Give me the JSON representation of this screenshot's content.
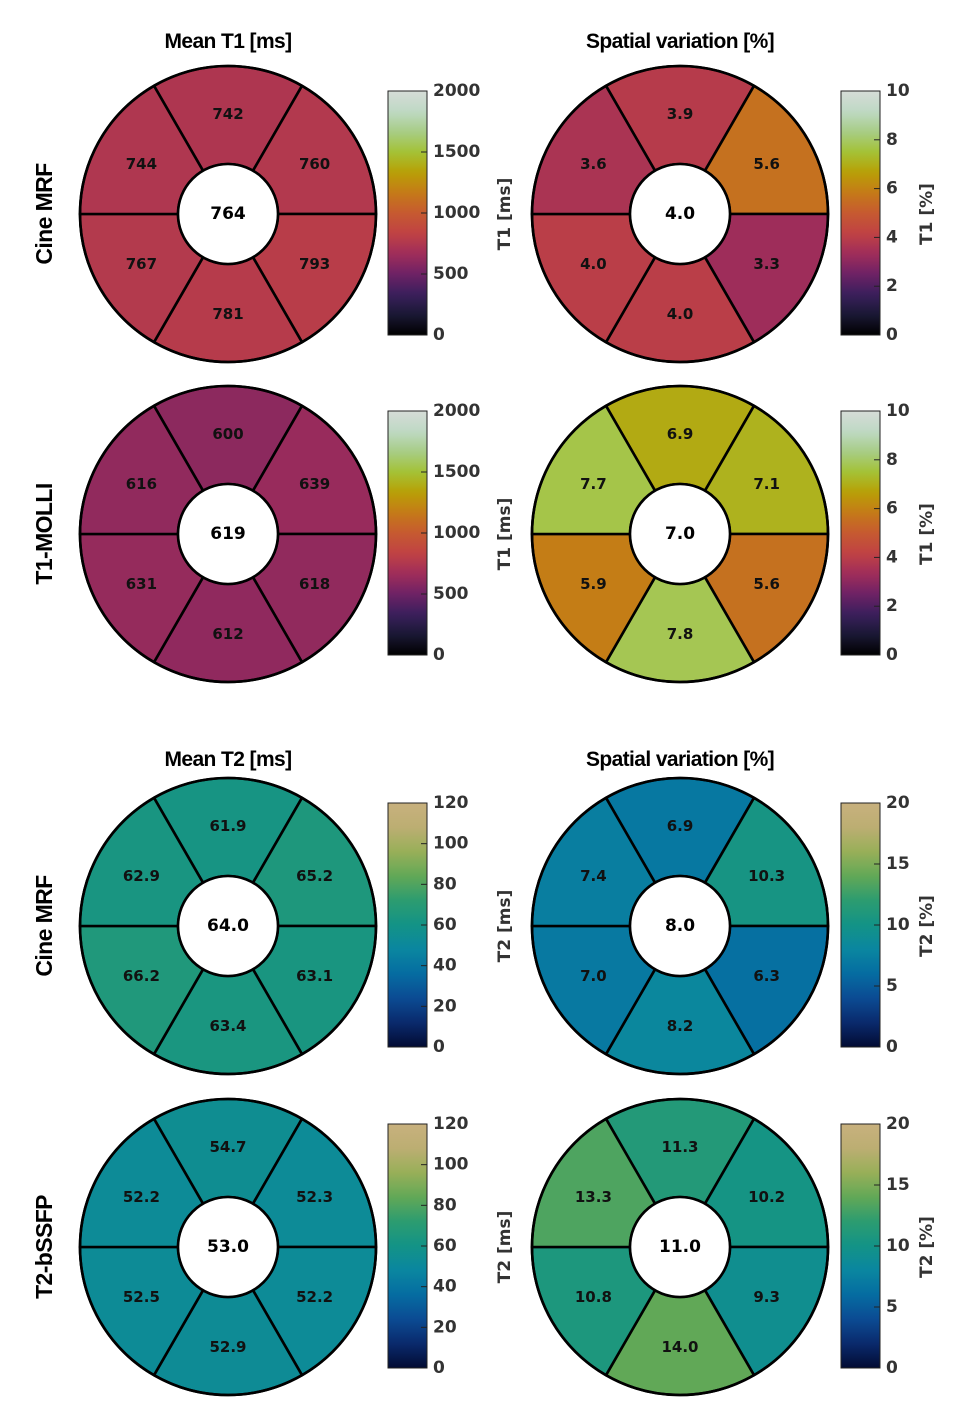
{
  "chart_data": [
    {
      "type": "bullseye",
      "section": "T1",
      "row_label": "Cine MRF",
      "col_title": "Mean T1 [ms]",
      "segments": [
        742,
        760,
        793,
        781,
        767,
        744
      ],
      "center": "764",
      "value_labels": [
        "742",
        "760",
        "793",
        "781",
        "767",
        "744"
      ],
      "colormap": "lipari",
      "clim": [
        0,
        2000
      ],
      "colorbar_label": "T1 [ms]",
      "colorbar_ticks": [
        "0",
        "500",
        "1000",
        "1500",
        "2000"
      ]
    },
    {
      "type": "bullseye",
      "section": "T1",
      "row_label": "Cine MRF",
      "col_title": "Spatial variation [%]",
      "segments": [
        3.9,
        5.6,
        3.3,
        4.0,
        4.0,
        3.6
      ],
      "center": "4.0",
      "value_labels": [
        "3.9",
        "5.6",
        "3.3",
        "4.0",
        "4.0",
        "3.6"
      ],
      "colormap": "lipari",
      "clim": [
        0,
        10
      ],
      "colorbar_label": "T1 [%]",
      "colorbar_ticks": [
        "0",
        "2",
        "4",
        "6",
        "8",
        "10"
      ]
    },
    {
      "type": "bullseye",
      "section": "T1",
      "row_label": "T1-MOLLI",
      "col_title": "",
      "segments": [
        600,
        639,
        618,
        612,
        631,
        616
      ],
      "center": "619",
      "value_labels": [
        "600",
        "639",
        "618",
        "612",
        "631",
        "616"
      ],
      "colormap": "lipari",
      "clim": [
        0,
        2000
      ],
      "colorbar_label": "T1 [ms]",
      "colorbar_ticks": [
        "0",
        "500",
        "1000",
        "1500",
        "2000"
      ]
    },
    {
      "type": "bullseye",
      "section": "T1",
      "row_label": "T1-MOLLI",
      "col_title": "",
      "segments": [
        6.9,
        7.1,
        5.6,
        7.8,
        5.9,
        7.7
      ],
      "center": "7.0",
      "value_labels": [
        "6.9",
        "7.1",
        "5.6",
        "7.8",
        "5.9",
        "7.7"
      ],
      "colormap": "lipari",
      "clim": [
        0,
        10
      ],
      "colorbar_label": "T1 [%]",
      "colorbar_ticks": [
        "0",
        "2",
        "4",
        "6",
        "8",
        "10"
      ]
    },
    {
      "type": "bullseye",
      "section": "T2",
      "row_label": "Cine MRF",
      "col_title": "Mean T2 [ms]",
      "segments": [
        61.9,
        65.2,
        63.1,
        63.4,
        66.2,
        62.9
      ],
      "center": "64.0",
      "value_labels": [
        "61.9",
        "65.2",
        "63.1",
        "63.4",
        "66.2",
        "62.9"
      ],
      "colormap": "navia",
      "clim": [
        0,
        120
      ],
      "colorbar_label": "T2 [ms]",
      "colorbar_ticks": [
        "0",
        "20",
        "40",
        "60",
        "80",
        "100",
        "120"
      ]
    },
    {
      "type": "bullseye",
      "section": "T2",
      "row_label": "Cine MRF",
      "col_title": "Spatial variation [%]",
      "segments": [
        6.9,
        10.3,
        6.3,
        8.2,
        7.0,
        7.4
      ],
      "center": "8.0",
      "value_labels": [
        "6.9",
        "10.3",
        "6.3",
        "8.2",
        "7.0",
        "7.4"
      ],
      "colormap": "navia",
      "clim": [
        0,
        20
      ],
      "colorbar_label": "T2 [%]",
      "colorbar_ticks": [
        "0",
        "5",
        "10",
        "15",
        "20"
      ]
    },
    {
      "type": "bullseye",
      "section": "T2",
      "row_label": "T2-bSSFP",
      "col_title": "",
      "segments": [
        54.7,
        52.3,
        52.2,
        52.9,
        52.5,
        52.2
      ],
      "center": "53.0",
      "value_labels": [
        "54.7",
        "52.3",
        "52.2",
        "52.9",
        "52.5",
        "52.2"
      ],
      "colormap": "navia",
      "clim": [
        0,
        120
      ],
      "colorbar_label": "T2 [ms]",
      "colorbar_ticks": [
        "0",
        "20",
        "40",
        "60",
        "80",
        "100",
        "120"
      ]
    },
    {
      "type": "bullseye",
      "section": "T2",
      "row_label": "T2-bSSFP",
      "col_title": "",
      "segments": [
        11.3,
        10.2,
        9.3,
        14.0,
        10.8,
        13.3
      ],
      "center": "11.0",
      "value_labels": [
        "11.3",
        "10.2",
        "9.3",
        "14.0",
        "10.8",
        "13.3"
      ],
      "colormap": "navia",
      "clim": [
        0,
        20
      ],
      "colorbar_label": "T2 [%]",
      "colorbar_ticks": [
        "0",
        "5",
        "10",
        "15",
        "20"
      ]
    }
  ],
  "colormaps": {
    "lipari": [
      "#000000",
      "#1a1834",
      "#3a1f5c",
      "#6e2265",
      "#a02d5a",
      "#c04244",
      "#c65a30",
      "#c57a18",
      "#b8a005",
      "#a4c236",
      "#a7cd86",
      "#bfd9c4",
      "#d6dcd8"
    ],
    "navia": [
      "#020b33",
      "#0a2a6c",
      "#0b4b93",
      "#056ca1",
      "#0a86a0",
      "#139386",
      "#2c9c70",
      "#61a857",
      "#98af58",
      "#bcae72",
      "#c8b07e"
    ]
  }
}
